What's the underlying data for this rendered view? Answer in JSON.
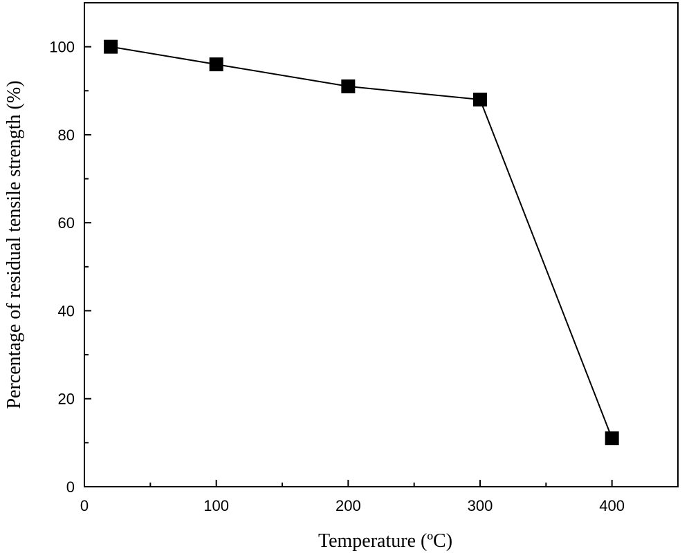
{
  "chart_data": {
    "type": "line",
    "title": "",
    "xlabel": "Temperature (ºC)",
    "ylabel": "Percentage of residual tensile strength (%)",
    "xlim": [
      0,
      450
    ],
    "ylim": [
      0,
      110
    ],
    "xticks": [
      0,
      100,
      200,
      300,
      400
    ],
    "yticks": [
      0,
      20,
      40,
      60,
      80,
      100
    ],
    "xtick_labels": [
      "0",
      "100",
      "200",
      "300",
      "400"
    ],
    "ytick_labels": [
      "0",
      "20",
      "40",
      "60",
      "80",
      "100"
    ],
    "grid": false,
    "legend": "none",
    "marker": "square",
    "colors": {
      "line": "#000000",
      "marker": "#000000",
      "axes": "#000000"
    },
    "series": [
      {
        "x": [
          20,
          100,
          200,
          300,
          400
        ],
        "y": [
          100,
          96,
          91,
          88,
          11
        ]
      }
    ]
  }
}
